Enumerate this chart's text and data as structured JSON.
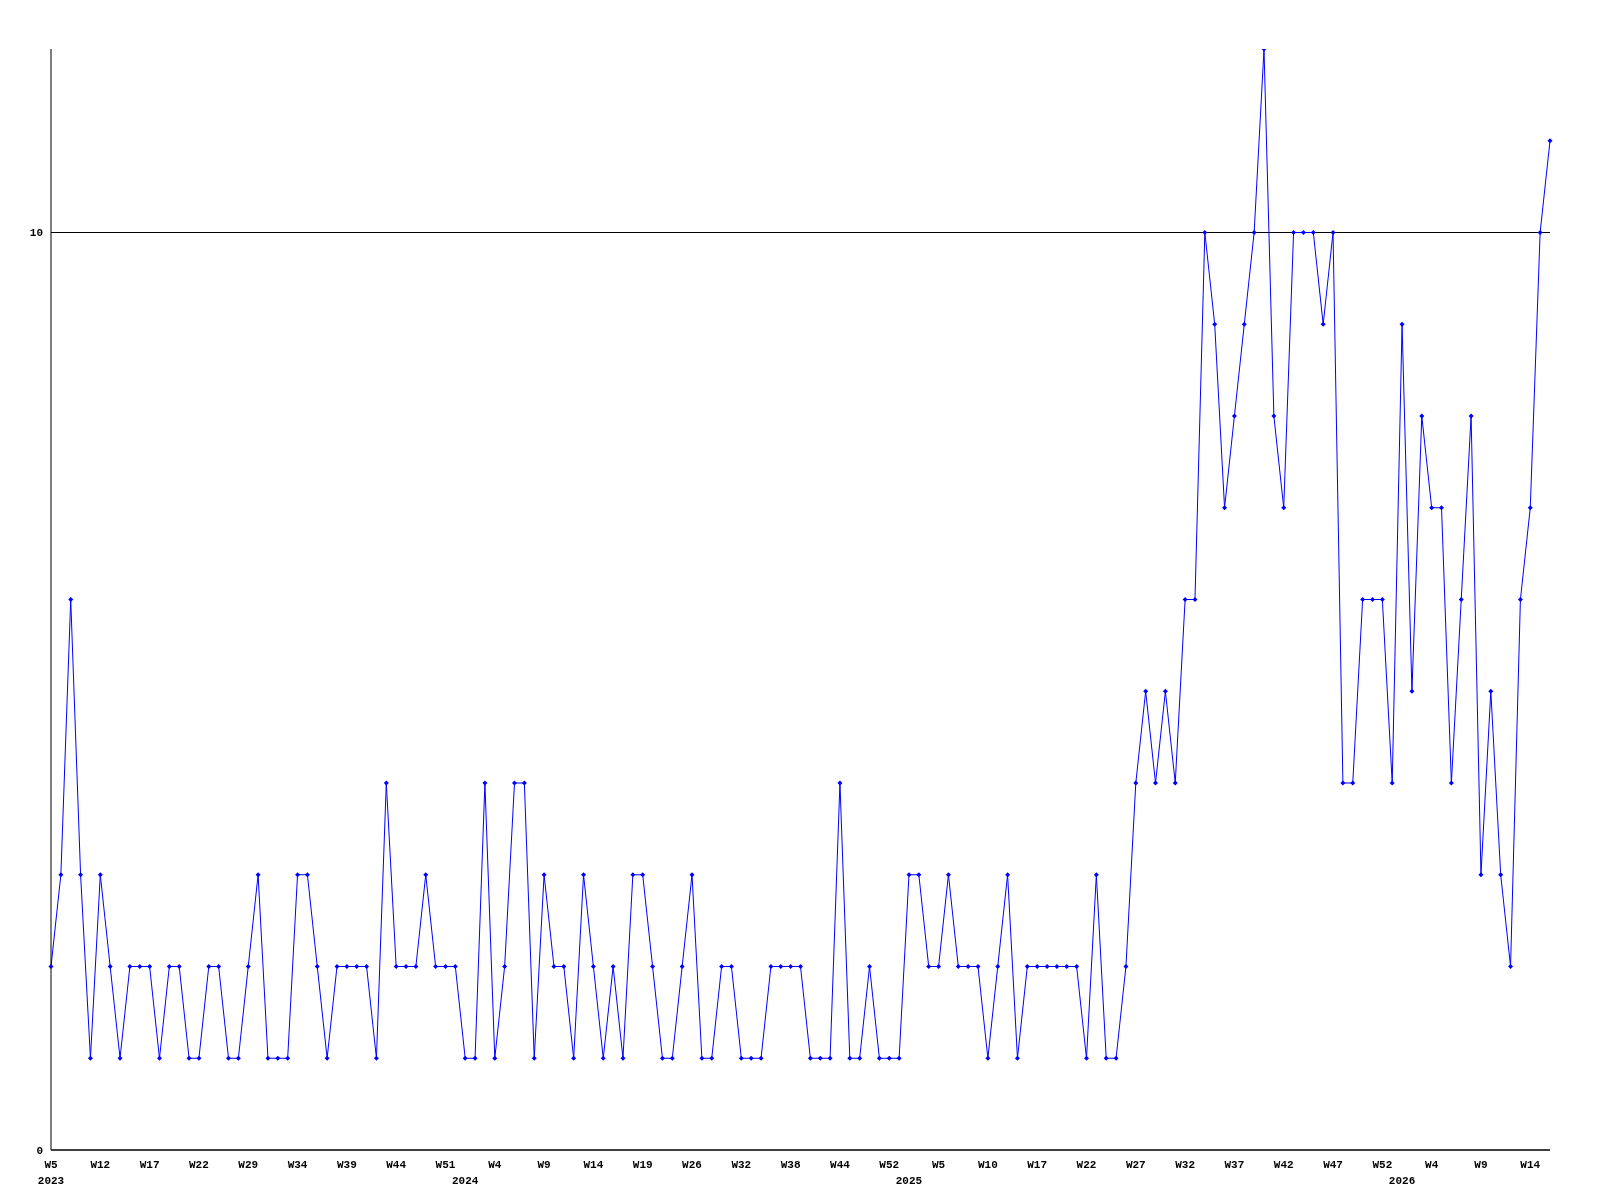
{
  "chart_data": {
    "type": "line",
    "categories": [
      "W5\n2023",
      null,
      null,
      null,
      null,
      "W12",
      null,
      null,
      null,
      null,
      "W17",
      null,
      null,
      null,
      null,
      "W22",
      null,
      null,
      null,
      null,
      "W29",
      null,
      null,
      null,
      null,
      "W34",
      null,
      null,
      null,
      null,
      "W39",
      null,
      null,
      null,
      null,
      "W44",
      null,
      null,
      null,
      null,
      "W51",
      null,
      "\n2024",
      null,
      null,
      "W4",
      null,
      null,
      null,
      null,
      "W9",
      null,
      null,
      null,
      null,
      "W14",
      null,
      null,
      null,
      null,
      "W19",
      null,
      null,
      null,
      null,
      "W26",
      null,
      null,
      null,
      null,
      "W32",
      null,
      null,
      null,
      null,
      "W38",
      null,
      null,
      null,
      null,
      "W44",
      null,
      null,
      null,
      null,
      "W52",
      null,
      "\n2025",
      null,
      null,
      "W5",
      null,
      null,
      null,
      null,
      "W10",
      null,
      null,
      null,
      null,
      "W17",
      null,
      null,
      null,
      null,
      "W22",
      null,
      null,
      null,
      null,
      "W27",
      null,
      null,
      null,
      null,
      "W32",
      null,
      null,
      null,
      null,
      "W37",
      null,
      null,
      null,
      null,
      "W42",
      null,
      null,
      null,
      null,
      "W47",
      null,
      null,
      null,
      null,
      "W52",
      null,
      "\n2026",
      null,
      null,
      "W4",
      null,
      null,
      null,
      null,
      "W9",
      null,
      null,
      null,
      null,
      "W14",
      null,
      null
    ],
    "series": [
      {
        "color": "#0000ff",
        "values": [
          2,
          3,
          6,
          3,
          1,
          3,
          2,
          1,
          2,
          2,
          2,
          1,
          2,
          2,
          1,
          1,
          2,
          2,
          1,
          1,
          2,
          3,
          1,
          1,
          1,
          3,
          3,
          2,
          1,
          2,
          2,
          2,
          2,
          1,
          4,
          2,
          2,
          2,
          3,
          2,
          2,
          2,
          1,
          1,
          4,
          1,
          2,
          4,
          4,
          1,
          3,
          2,
          2,
          1,
          3,
          2,
          1,
          2,
          1,
          3,
          3,
          2,
          1,
          1,
          2,
          3,
          1,
          1,
          2,
          2,
          1,
          1,
          1,
          2,
          2,
          2,
          2,
          1,
          1,
          1,
          4,
          1,
          1,
          2,
          1,
          1,
          1,
          3,
          3,
          2,
          2,
          3,
          2,
          2,
          2,
          1,
          2,
          3,
          1,
          2,
          2,
          2,
          2,
          2,
          2,
          1,
          3,
          1,
          1,
          2,
          4,
          5,
          4,
          5,
          4,
          6,
          6,
          10,
          9,
          7,
          8,
          9,
          10,
          12,
          8,
          7,
          10,
          10,
          10,
          9,
          10,
          4,
          4,
          6,
          6,
          6,
          4,
          9,
          5,
          8,
          7,
          7,
          4,
          6,
          8,
          3,
          5,
          3,
          2,
          6,
          7,
          10,
          11
        ]
      }
    ],
    "ylim": [
      0,
      12
    ],
    "yticks": [
      0,
      10
    ],
    "grid": "y",
    "marker": "diamond",
    "line_style": "solid",
    "legend": false
  }
}
